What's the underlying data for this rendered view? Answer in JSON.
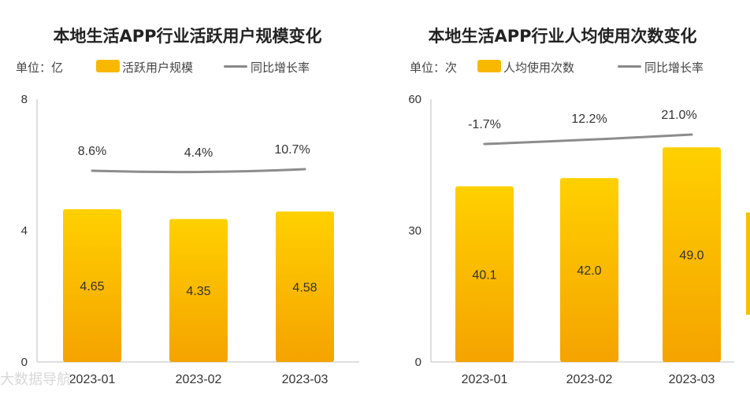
{
  "chart_data": [
    {
      "type": "bar",
      "title": "本地生活APP行业活跃用户规模变化",
      "unit_label": "单位：亿",
      "categories": [
        "2023-01",
        "2023-02",
        "2023-03"
      ],
      "series": [
        {
          "name": "活跃用户规模",
          "kind": "bar",
          "values": [
            4.65,
            4.35,
            4.58
          ],
          "labels": [
            "4.65",
            "4.35",
            "4.58"
          ]
        },
        {
          "name": "同比增长率",
          "kind": "line",
          "values": [
            8.6,
            4.4,
            10.7
          ],
          "labels": [
            "8.6%",
            "4.4%",
            "10.7%"
          ]
        }
      ],
      "ylim": [
        0,
        8
      ],
      "yticks": [
        "0",
        "4",
        "8"
      ],
      "legend": {
        "bar": "活跃用户规模",
        "line": "同比增长率"
      }
    },
    {
      "type": "bar",
      "title": "本地生活APP行业人均使用次数变化",
      "unit_label": "单位：次",
      "categories": [
        "2023-01",
        "2023-02",
        "2023-03"
      ],
      "series": [
        {
          "name": "人均使用次数",
          "kind": "bar",
          "values": [
            40.1,
            42.0,
            49.0
          ],
          "labels": [
            "40.1",
            "42.0",
            "49.0"
          ]
        },
        {
          "name": "同比增长率",
          "kind": "line",
          "values": [
            -1.7,
            12.2,
            21.0
          ],
          "labels": [
            "-1.7%",
            "12.2%",
            "21.0%"
          ]
        }
      ],
      "ylim": [
        0,
        60
      ],
      "yticks": [
        "0",
        "30",
        "60"
      ],
      "legend": {
        "bar": "人均使用次数",
        "line": "同比增长率"
      }
    }
  ],
  "watermark": "大数据导航",
  "colors": {
    "bar_top": "#ffd000",
    "bar_bottom": "#f5a300",
    "line": "#8c8c8c",
    "axis": "#bfbfbf"
  }
}
